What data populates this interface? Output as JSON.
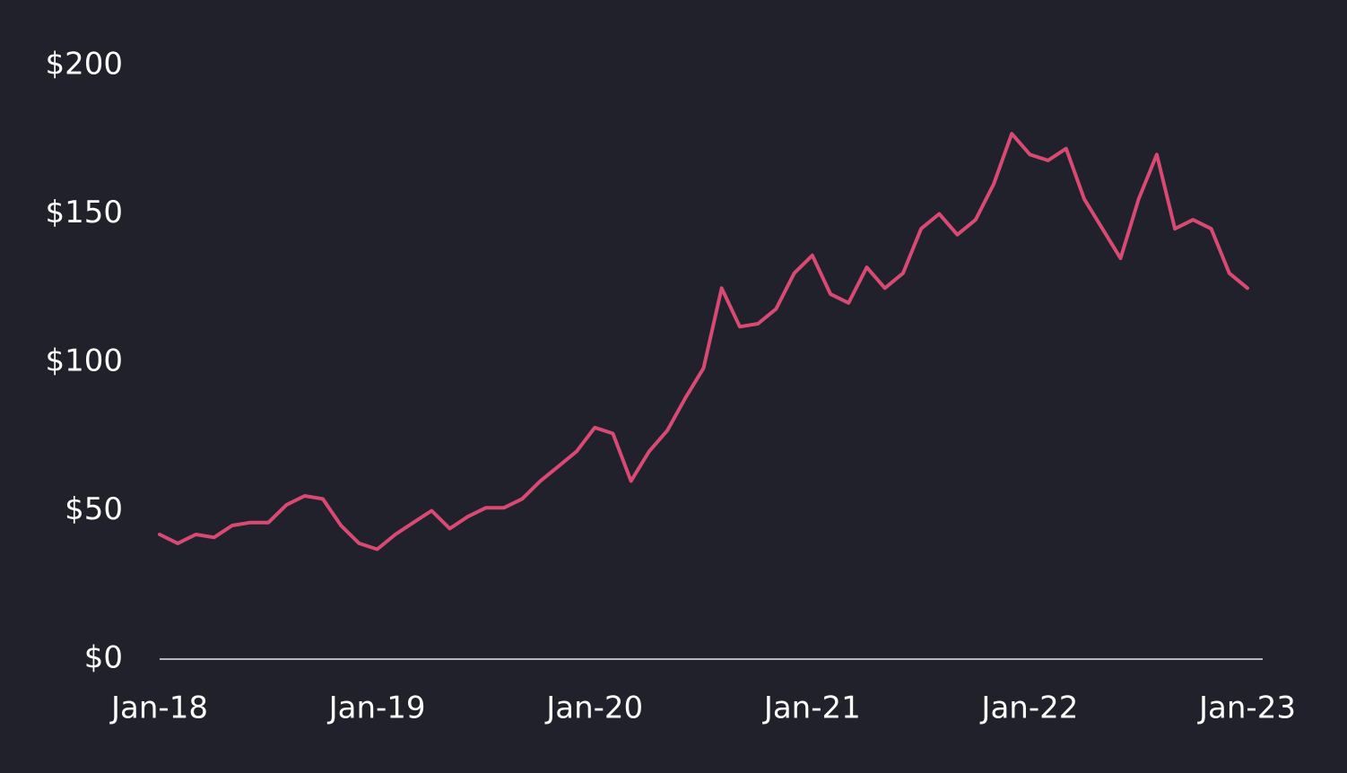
{
  "chart_data": {
    "type": "line",
    "x": [
      "2018-01",
      "2018-02",
      "2018-03",
      "2018-04",
      "2018-05",
      "2018-06",
      "2018-07",
      "2018-08",
      "2018-09",
      "2018-10",
      "2018-11",
      "2018-12",
      "2019-01",
      "2019-02",
      "2019-03",
      "2019-04",
      "2019-05",
      "2019-06",
      "2019-07",
      "2019-08",
      "2019-09",
      "2019-10",
      "2019-11",
      "2019-12",
      "2020-01",
      "2020-02",
      "2020-03",
      "2020-04",
      "2020-05",
      "2020-06",
      "2020-07",
      "2020-08",
      "2020-09",
      "2020-10",
      "2020-11",
      "2020-12",
      "2021-01",
      "2021-02",
      "2021-03",
      "2021-04",
      "2021-05",
      "2021-06",
      "2021-07",
      "2021-08",
      "2021-09",
      "2021-10",
      "2021-11",
      "2021-12",
      "2022-01",
      "2022-02",
      "2022-03",
      "2022-04",
      "2022-05",
      "2022-06",
      "2022-07",
      "2022-08",
      "2022-09",
      "2022-10",
      "2022-11",
      "2022-12",
      "2023-01"
    ],
    "series": [
      {
        "color": "#d94a73",
        "values": [
          42,
          39,
          42,
          41,
          45,
          46,
          46,
          52,
          55,
          54,
          45,
          39,
          37,
          42,
          46,
          50,
          44,
          48,
          51,
          51,
          54,
          60,
          65,
          70,
          78,
          76,
          60,
          70,
          77,
          88,
          98,
          125,
          112,
          113,
          118,
          130,
          136,
          123,
          120,
          132,
          125,
          130,
          145,
          150,
          143,
          148,
          160,
          177,
          170,
          168,
          172,
          155,
          145,
          135,
          155,
          170,
          145,
          148,
          145,
          130,
          125
        ]
      }
    ],
    "xlim": [
      "2018-01",
      "2023-01"
    ],
    "xticks": [
      {
        "value": "2018-01",
        "label": "Jan-18"
      },
      {
        "value": "2019-01",
        "label": "Jan-19"
      },
      {
        "value": "2020-01",
        "label": "Jan-20"
      },
      {
        "value": "2021-01",
        "label": "Jan-21"
      },
      {
        "value": "2022-01",
        "label": "Jan-22"
      },
      {
        "value": "2023-01",
        "label": "Jan-23"
      }
    ],
    "ylim": [
      0,
      200
    ],
    "yticks": [
      {
        "value": 0,
        "label": "$0"
      },
      {
        "value": 50,
        "label": "$50"
      },
      {
        "value": 100,
        "label": "$100"
      },
      {
        "value": 150,
        "label": "$150"
      },
      {
        "value": 200,
        "label": "$200"
      }
    ]
  }
}
